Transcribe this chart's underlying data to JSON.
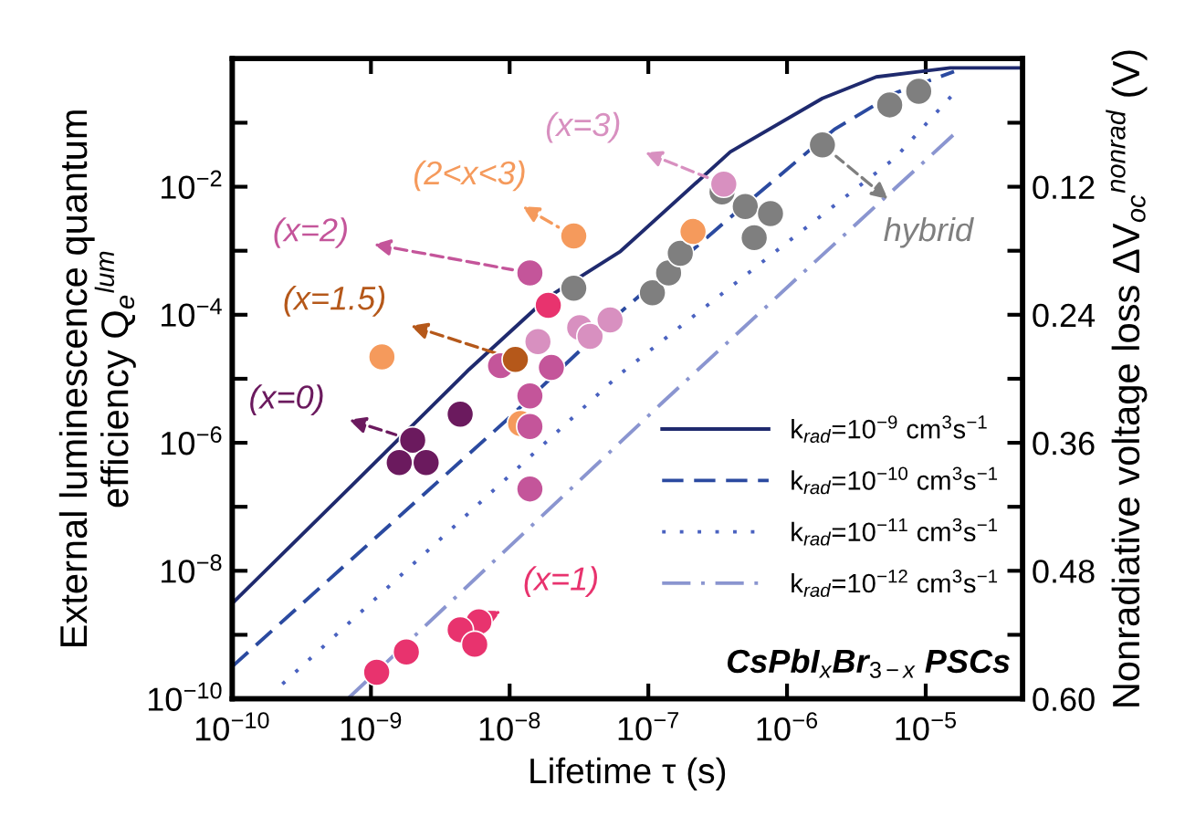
{
  "chart_data": {
    "type": "scatter",
    "xlabel": "Lifetime τ (s)",
    "ylabel": "External luminescence quantum\nefficiency Q$_{e}$$^{lum}$",
    "y2label": "Nonradiative voltage loss ΔV$_{oc}$$^{nonrad}$ (V)",
    "log": "xy",
    "xlim": [
      1e-10,
      5e-05
    ],
    "xticks": [
      {
        "value": 1e-10,
        "label": "10$^{−10}$"
      },
      {
        "value": 1e-09,
        "label": "10$^{−9}$"
      },
      {
        "value": 1e-08,
        "label": "10$^{−8}$"
      },
      {
        "value": 1e-07,
        "label": "10$^{−7}$"
      },
      {
        "value": 1e-06,
        "label": "10$^{−6}$"
      },
      {
        "value": 1e-05,
        "label": "10$^{−5}$"
      }
    ],
    "ylim": [
      1e-10,
      1
    ],
    "yticks": [
      {
        "value": 1e-10,
        "label": "10$^{−10}$"
      },
      {
        "value": 1e-09,
        "label": null
      },
      {
        "value": 1e-08,
        "label": "10$^{−8}$"
      },
      {
        "value": 1e-07,
        "label": null
      },
      {
        "value": 1e-06,
        "label": "10$^{−6}$"
      },
      {
        "value": 1e-05,
        "label": null
      },
      {
        "value": 0.0001,
        "label": "10$^{−4}$"
      },
      {
        "value": 0.001,
        "label": null
      },
      {
        "value": 0.01,
        "label": "10$^{−2}$"
      },
      {
        "value": 0.1,
        "label": null
      }
    ],
    "y2lim": [
      0.6,
      0
    ],
    "y2ticks": [
      {
        "value": 0.06,
        "label": null
      },
      0.12,
      {
        "value": 0.18,
        "label": null
      },
      0.24,
      {
        "value": 0.3,
        "label": null
      },
      0.36,
      {
        "value": 0.42,
        "label": null
      },
      0.48,
      {
        "value": 0.54,
        "label": null
      },
      {
        "value": 0.6,
        "label": "0.60"
      }
    ],
    "grid": false,
    "legend": "lower right",
    "annotations": [
      "CsPbI$_{x}$Br$_{3−x}$ PSCs"
    ],
    "series": [
      {
        "type": "line",
        "name": "k$_{rad}$=10$^{−9}$ cm$^{3}$s$^{−1}$",
        "color": "#1f2a6e",
        "line_style": "solid",
        "x": [
          1e-10,
          7.2e-10,
          5.1e-09,
          1.9e-08,
          6.3e-08,
          3.9e-07,
          1.8e-06,
          4.4e-06,
          1.5e-05,
          5e-05
        ],
        "values": [
          3.1e-09,
          2.1e-07,
          1.4e-05,
          0.00019,
          0.00098,
          0.035,
          0.24,
          0.52,
          0.72,
          0.72
        ]
      },
      {
        "type": "line",
        "name": "k$_{rad}$=10$^{−10}$ cm$^{3}$s$^{−1}$",
        "color": "#2b4aa0",
        "line_style": "dashed",
        "x": [
          1e-10,
          1e-08,
          6.3e-08,
          4.8e-07,
          2.2e-06,
          6e-06,
          1.6e-05
        ],
        "values": [
          3.2e-10,
          2.5e-06,
          0.00011,
          0.0049,
          0.079,
          0.29,
          0.63
        ]
      },
      {
        "type": "line",
        "name": "k$_{rad}$=10$^{−11}$ cm$^{3}$s$^{−1}$",
        "color": "#4a62c0",
        "line_style": "dotted",
        "x": [
          2.3e-10,
          6.3e-08,
          1.3e-06,
          6e-06,
          1.6e-05
        ],
        "values": [
          1.7e-10,
          1.2e-05,
          0.0021,
          0.028,
          0.29
        ]
      },
      {
        "type": "line",
        "name": "k$_{rad}$=10$^{−12}$ cm$^{3}$s$^{−1}$",
        "color": "#8a95d0",
        "line_style": "dashdot",
        "x": [
          6.8e-10,
          1.3e-07,
          1.3e-06,
          1.6e-05
        ],
        "values": [
          1e-10,
          4.5e-06,
          0.00045,
          0.066
        ]
      },
      {
        "name": "(x=0)",
        "color": "#6b1a5e",
        "marker": "circle",
        "x": [
          2e-09,
          4.4e-09,
          1.6e-09,
          2.5e-09
        ],
        "values": [
          1.1e-06,
          2.8e-06,
          4.9e-07,
          4.9e-07
        ]
      },
      {
        "name": "(x=1)",
        "color": "#e8336e",
        "marker": "circle",
        "x": [
          6e-09,
          1.1e-09,
          1.8e-09,
          4.4e-09,
          5.6e-09,
          1.9e-08
        ],
        "values": [
          1.6e-09,
          2.6e-10,
          5.4e-10,
          1.2e-09,
          7.1e-10,
          0.00014
        ]
      },
      {
        "name": "(x=1.5)",
        "color": "#b5581a",
        "marker": "circle",
        "x": [
          1.1e-08
        ],
        "values": [
          2e-05
        ]
      },
      {
        "name": "(x=2)",
        "color": "#c4559a",
        "marker": "circle",
        "x": [
          1.4e-08,
          8.6e-09,
          2e-08,
          1.4e-08,
          1.4e-08,
          1.4e-08
        ],
        "values": [
          0.00045,
          1.6e-05,
          1.5e-05,
          5.4e-06,
          1.8e-06,
          1.9e-07
        ]
      },
      {
        "name": "(2<x<3)",
        "color": "#f59a5c",
        "marker": "circle",
        "x": [
          2.9e-08,
          1.2e-09,
          1.2e-08,
          2.1e-07
        ],
        "values": [
          0.0017,
          2.2e-05,
          2e-06,
          0.002
        ]
      },
      {
        "name": "(x=3)",
        "color": "#d890c0",
        "marker": "circle",
        "x": [
          3.5e-07,
          1.6e-08,
          3.2e-08,
          3.8e-08,
          5.3e-08
        ],
        "values": [
          0.011,
          3.8e-05,
          6.3e-05,
          4.6e-05,
          8.3e-05
        ]
      },
      {
        "name": "hybrid",
        "color": "#7f7f7f",
        "marker": "circle",
        "x": [
          1.8e-06,
          2.9e-08,
          1.07e-07,
          1.4e-07,
          1.7e-07,
          3.4e-07,
          5e-07,
          7.6e-07,
          5.8e-07,
          5.5e-06,
          8.9e-06
        ],
        "values": [
          0.045,
          0.00026,
          0.00022,
          0.00045,
          0.00091,
          0.0083,
          0.0049,
          0.0038,
          0.0016,
          0.19,
          0.31
        ]
      }
    ]
  }
}
